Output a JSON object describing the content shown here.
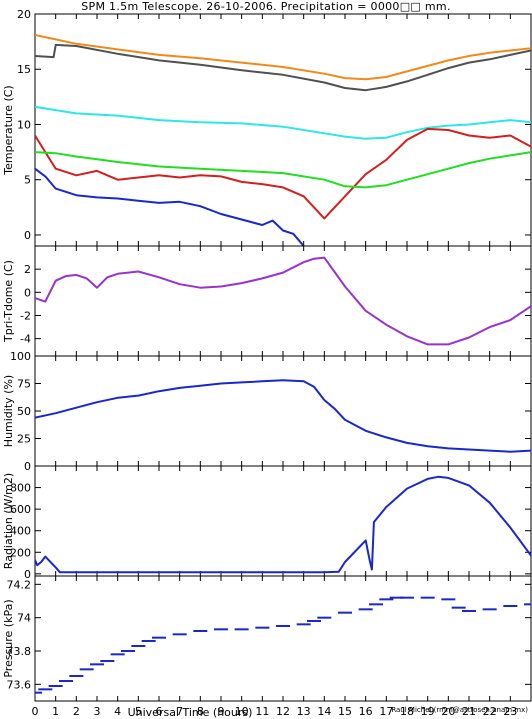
{
  "title": "SPM 1.5m Telescope. 26-10-2006. Precipitation = 0000□□ mm.",
  "credit": "Raul Michel (rmm@astrosen.unam.mx)",
  "xlabel": "Universal Time (hours)",
  "x_ticks": [
    0,
    1,
    2,
    3,
    4,
    5,
    6,
    7,
    8,
    9,
    10,
    11,
    12,
    13,
    14,
    15,
    16,
    17,
    18,
    19,
    20,
    21,
    22,
    23
  ],
  "chart_data": [
    {
      "type": "line",
      "ylabel": "Temperature (C)",
      "xlim": [
        0,
        24
      ],
      "ylim": [
        -1,
        20
      ],
      "y_ticks": [
        0,
        5,
        10,
        15,
        20
      ],
      "series": [
        {
          "color": "#f08a1c",
          "x": [
            0,
            1,
            2,
            4,
            6,
            8,
            10,
            12,
            14,
            15,
            16,
            17,
            18,
            19,
            20,
            21,
            22,
            23,
            24
          ],
          "values": [
            18.1,
            17.7,
            17.3,
            16.8,
            16.3,
            16.0,
            15.6,
            15.2,
            14.6,
            14.2,
            14.1,
            14.3,
            14.8,
            15.3,
            15.8,
            16.2,
            16.5,
            16.7,
            16.9
          ]
        },
        {
          "color": "#505050",
          "x": [
            0,
            0.9,
            1,
            2,
            4,
            6,
            8,
            10,
            12,
            14,
            15,
            16,
            17,
            18,
            19,
            20,
            21,
            22,
            23,
            24
          ],
          "values": [
            16.2,
            16.1,
            17.2,
            17.1,
            16.4,
            15.8,
            15.4,
            14.9,
            14.5,
            13.8,
            13.3,
            13.1,
            13.4,
            13.9,
            14.5,
            15.1,
            15.6,
            15.9,
            16.3,
            16.7
          ]
        },
        {
          "color": "#2ee6e6",
          "x": [
            0,
            1,
            2,
            4,
            6,
            8,
            10,
            12,
            14,
            15,
            16,
            17,
            18,
            19,
            20,
            21,
            22,
            23,
            24
          ],
          "values": [
            11.6,
            11.3,
            11.0,
            10.8,
            10.4,
            10.2,
            10.1,
            9.8,
            9.2,
            8.9,
            8.7,
            8.8,
            9.3,
            9.7,
            9.9,
            10.0,
            10.2,
            10.4,
            10.2
          ]
        },
        {
          "color": "#d02020",
          "x": [
            0,
            0.5,
            1,
            2,
            3,
            4,
            5,
            6,
            7,
            8,
            9,
            10,
            11,
            12,
            13,
            14,
            15,
            16,
            17,
            18,
            19,
            20,
            21,
            22,
            23,
            24
          ],
          "values": [
            9.0,
            7.5,
            6.0,
            5.4,
            5.8,
            5.0,
            5.2,
            5.4,
            5.2,
            5.4,
            5.3,
            4.8,
            4.6,
            4.3,
            3.5,
            1.5,
            3.5,
            5.5,
            6.8,
            8.6,
            9.6,
            9.5,
            9.0,
            8.8,
            9.0,
            8.0
          ]
        },
        {
          "color": "#22dd22",
          "x": [
            0,
            1,
            2,
            4,
            6,
            8,
            10,
            12,
            14,
            15,
            16,
            17,
            18,
            19,
            20,
            21,
            22,
            23,
            24
          ],
          "values": [
            7.5,
            7.4,
            7.1,
            6.6,
            6.2,
            6.0,
            5.8,
            5.6,
            5.0,
            4.4,
            4.3,
            4.5,
            5.0,
            5.5,
            6.0,
            6.5,
            6.9,
            7.2,
            7.5
          ]
        },
        {
          "color": "#1a28c8",
          "x": [
            0,
            0.5,
            1,
            2,
            3,
            4,
            5,
            6,
            7,
            8,
            9,
            10,
            11,
            11.5,
            12,
            12.5,
            13
          ],
          "values": [
            6.0,
            5.3,
            4.2,
            3.6,
            3.4,
            3.3,
            3.1,
            2.9,
            3.0,
            2.6,
            1.9,
            1.4,
            0.9,
            1.3,
            0.4,
            0.1,
            -1.0
          ]
        }
      ]
    },
    {
      "type": "line",
      "ylabel": "Tpri-Tdome (C)",
      "xlim": [
        0,
        24
      ],
      "ylim": [
        -5.5,
        4
      ],
      "y_ticks": [
        -4,
        -2,
        0,
        2
      ],
      "series": [
        {
          "color": "#9932cc",
          "x": [
            0,
            0.5,
            1,
            1.5,
            2,
            2.5,
            3,
            3.5,
            4,
            5,
            6,
            7,
            8,
            9,
            10,
            11,
            12,
            13,
            13.5,
            14,
            15,
            16,
            17,
            18,
            19,
            20,
            21,
            22,
            23,
            24
          ],
          "values": [
            -0.5,
            -0.8,
            1.0,
            1.4,
            1.5,
            1.2,
            0.4,
            1.3,
            1.6,
            1.8,
            1.3,
            0.7,
            0.4,
            0.5,
            0.8,
            1.2,
            1.7,
            2.6,
            2.9,
            3.0,
            0.5,
            -1.6,
            -2.8,
            -3.8,
            -4.5,
            -4.5,
            -3.9,
            -3.0,
            -2.4,
            -1.2
          ]
        }
      ]
    },
    {
      "type": "line",
      "ylabel": "Humidity (%)",
      "xlim": [
        0,
        24
      ],
      "ylim": [
        0,
        100
      ],
      "y_ticks": [
        0,
        25,
        50,
        75,
        100
      ],
      "series": [
        {
          "color": "#1a28c8",
          "x": [
            0,
            1,
            2,
            3,
            4,
            5,
            6,
            7,
            8,
            9,
            10,
            11,
            12,
            13,
            13.5,
            14,
            14.5,
            15,
            16,
            17,
            18,
            19,
            20,
            21,
            22,
            23,
            24
          ],
          "values": [
            44,
            48,
            53,
            58,
            62,
            64,
            68,
            71,
            73,
            75,
            76,
            77,
            78,
            77,
            72,
            60,
            52,
            42,
            32,
            26,
            21,
            18,
            16,
            15,
            14,
            13,
            14
          ]
        }
      ]
    },
    {
      "type": "line",
      "ylabel": "Radiation (W/m2)",
      "xlim": [
        0,
        24
      ],
      "ylim": [
        -20,
        1000
      ],
      "y_ticks": [
        0,
        200,
        400,
        600,
        800
      ],
      "series": [
        {
          "color": "#1a28c8",
          "x": [
            0,
            0.1,
            0.3,
            0.5,
            0.7,
            1,
            1.2,
            2,
            4,
            6,
            8,
            10,
            12,
            14,
            14.7,
            15,
            16,
            16.2,
            16.3,
            16.4,
            17,
            18,
            19,
            19.5,
            20,
            21,
            22,
            23,
            24
          ],
          "values": [
            130,
            80,
            110,
            160,
            120,
            60,
            15,
            15,
            15,
            15,
            15,
            15,
            15,
            15,
            20,
            110,
            310,
            120,
            40,
            480,
            620,
            790,
            880,
            900,
            890,
            820,
            660,
            430,
            170
          ]
        }
      ]
    },
    {
      "type": "scatter",
      "ylabel": "Pressure (kPa)",
      "xlim": [
        0,
        24
      ],
      "ylim": [
        73.5,
        74.25
      ],
      "y_ticks": [
        73.6,
        73.8,
        74,
        74.2
      ],
      "series": [
        {
          "color": "#1a28c8",
          "x": [
            0,
            0.5,
            1,
            1.5,
            2,
            2.5,
            3,
            3.5,
            4,
            4.5,
            5,
            5.5,
            6,
            7,
            8,
            9,
            10,
            11,
            12,
            13,
            13.5,
            14,
            15,
            16,
            16.5,
            17,
            17.5,
            18,
            19,
            20,
            20.5,
            21,
            22,
            23,
            24
          ],
          "values": [
            73.55,
            73.57,
            73.59,
            73.62,
            73.65,
            73.69,
            73.72,
            73.74,
            73.78,
            73.8,
            73.83,
            73.86,
            73.88,
            73.9,
            73.92,
            73.93,
            73.93,
            73.94,
            73.95,
            73.96,
            73.98,
            74.0,
            74.03,
            74.05,
            74.08,
            74.11,
            74.12,
            74.12,
            74.12,
            74.11,
            74.06,
            74.04,
            74.05,
            74.07,
            74.08
          ]
        }
      ]
    }
  ]
}
